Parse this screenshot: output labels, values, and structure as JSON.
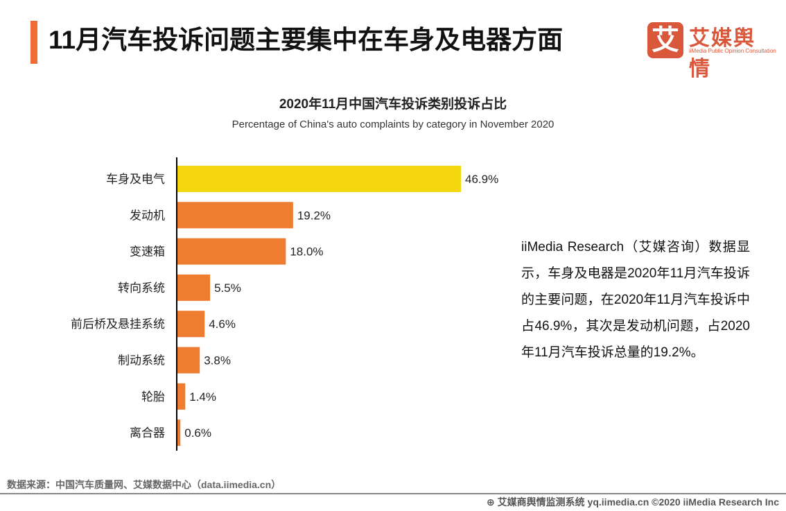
{
  "header": {
    "title": "11月汽车投诉问题主要集中在车身及电器方面",
    "accent_color": "#f06c35"
  },
  "logo": {
    "mark": "艾",
    "name": "艾媒舆情",
    "tagline": "iiMedia Public Opinion Consultation",
    "color": "#d9573a"
  },
  "chart_data": {
    "type": "bar",
    "orientation": "horizontal",
    "title": "2020年11月中国汽车投诉类别投诉占比",
    "subtitle": "Percentage of China's auto complaints by category in November 2020",
    "categories": [
      "车身及电气",
      "发动机",
      "变速箱",
      "转向系统",
      "前后桥及悬挂系统",
      "制动系统",
      "轮胎",
      "离合器"
    ],
    "values": [
      46.9,
      19.2,
      18.0,
      5.5,
      4.6,
      3.8,
      1.4,
      0.6
    ],
    "labels": [
      "46.9%",
      "19.2%",
      "18.0%",
      "5.5%",
      "4.6%",
      "3.8%",
      "1.4%",
      "0.6%"
    ],
    "colors": [
      "#f5d70f",
      "#ee7d31",
      "#ee7d31",
      "#ee7d31",
      "#ee7d31",
      "#ee7d31",
      "#ee7d31",
      "#ee7d31"
    ],
    "unit": "%",
    "xlim": [
      0,
      50
    ],
    "grid": false
  },
  "note": "iiMedia Research（艾媒咨询）数据显示，车身及电器是2020年11月汽车投诉的主要问题，在2020年11月汽车投诉中占46.9%，其次是发动机问题，占2020年11月汽车投诉总量的19.2%。",
  "source": "数据来源：中国汽车质量网、艾媒数据中心（data.iimedia.cn）",
  "footer": "艾媒商舆情监测系统 yq.iimedia.cn  ©2020  iiMedia Research  Inc"
}
